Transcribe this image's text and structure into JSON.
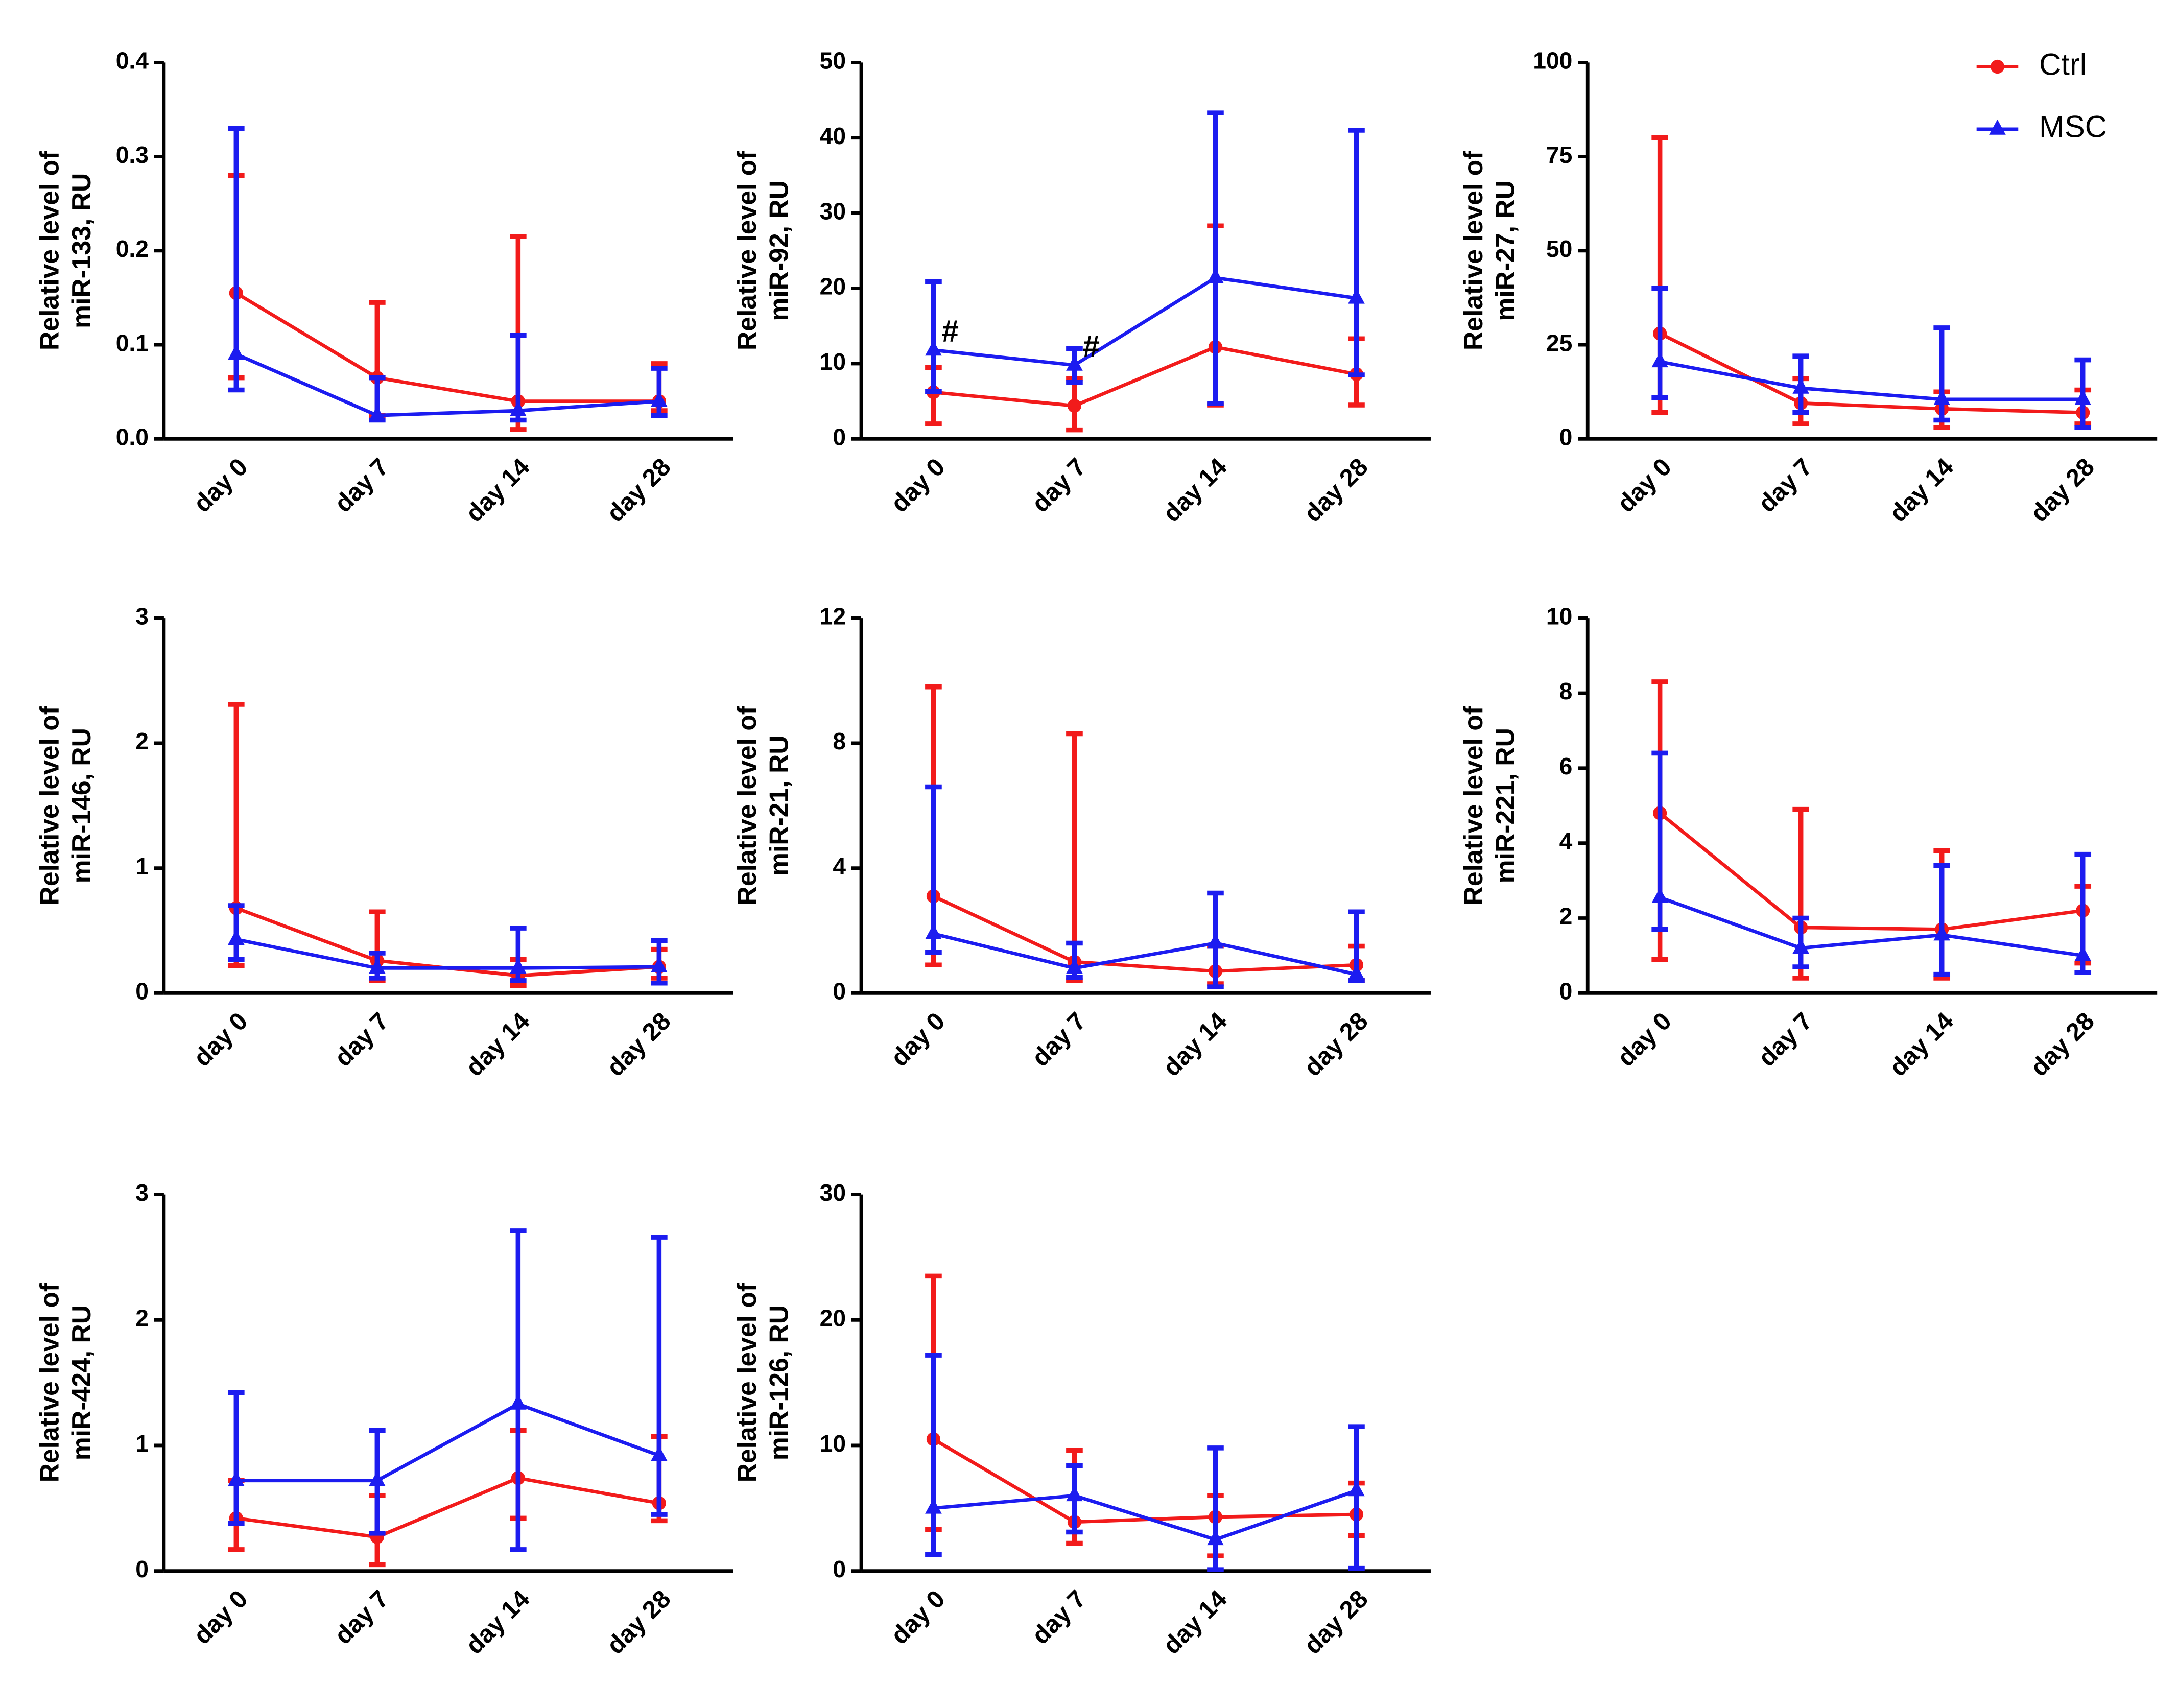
{
  "chart_data": [
    {
      "type": "line",
      "ylabel": [
        "Relative level of",
        "miR-133, RU"
      ],
      "categories": [
        "day 0",
        "day 7",
        "day 14",
        "day 28"
      ],
      "ylim": [
        0,
        0.4
      ],
      "yticks": [
        {
          "value": 0,
          "label": "0.0"
        },
        0.1,
        0.2,
        0.3,
        0.4
      ],
      "series": [
        {
          "name": "Ctrl",
          "color": "#f21b1b",
          "marker": "circle",
          "values": [
            0.155,
            0.065,
            0.04,
            0.04
          ],
          "lower": [
            0.065,
            0.025,
            0.01,
            0.03
          ],
          "upper": [
            0.28,
            0.145,
            0.215,
            0.08
          ]
        },
        {
          "name": "MSC",
          "color": "#1c1cf0",
          "marker": "triangle",
          "values": [
            0.09,
            0.025,
            0.03,
            0.04
          ],
          "lower": [
            0.052,
            0.02,
            0.02,
            0.025
          ],
          "upper": [
            0.33,
            0.065,
            0.11,
            0.075
          ]
        }
      ]
    },
    {
      "type": "line",
      "ylabel": [
        "Relative level of",
        "miR-92, RU"
      ],
      "categories": [
        "day 0",
        "day 7",
        "day 14",
        "day 28"
      ],
      "ylim": [
        0,
        50
      ],
      "yticks": [
        0,
        10,
        20,
        30,
        40,
        50
      ],
      "annotations": [
        "#",
        "#"
      ],
      "series": [
        {
          "name": "Ctrl",
          "color": "#f21b1b",
          "marker": "circle",
          "values": [
            6.2,
            4.4,
            12.2,
            8.6
          ],
          "lower": [
            2,
            1.2,
            4.5,
            4.5
          ],
          "upper": [
            9.5,
            8,
            28.3,
            13.3
          ]
        },
        {
          "name": "MSC",
          "color": "#1c1cf0",
          "marker": "triangle",
          "values": [
            11.8,
            9.8,
            21.4,
            18.7
          ],
          "lower": [
            6.3,
            7.5,
            4.7,
            8.5
          ],
          "upper": [
            20.9,
            12,
            43.3,
            41
          ]
        }
      ]
    },
    {
      "type": "line",
      "ylabel": [
        "Relative level of",
        "miR-27, RU"
      ],
      "categories": [
        "day 0",
        "day 7",
        "day 14",
        "day 28"
      ],
      "ylim": [
        0,
        100
      ],
      "yticks": [
        0,
        25,
        50,
        75,
        100
      ],
      "legend": "upper right",
      "series": [
        {
          "name": "Ctrl",
          "color": "#f21b1b",
          "marker": "circle",
          "values": [
            28,
            9.5,
            8,
            7
          ],
          "lower": [
            7,
            4,
            3,
            4
          ],
          "upper": [
            80,
            16,
            12.5,
            13
          ]
        },
        {
          "name": "MSC",
          "color": "#1c1cf0",
          "marker": "triangle",
          "values": [
            20.5,
            13.5,
            10.5,
            10.5
          ],
          "lower": [
            11,
            7,
            5,
            3
          ],
          "upper": [
            40,
            22,
            29.5,
            21
          ]
        }
      ]
    },
    {
      "type": "line",
      "ylabel": [
        "Relative level of",
        "miR-146, RU"
      ],
      "categories": [
        "day 0",
        "day 7",
        "day 14",
        "day 28"
      ],
      "ylim": [
        0,
        3
      ],
      "yticks": [
        0,
        1,
        2,
        3
      ],
      "series": [
        {
          "name": "Ctrl",
          "color": "#f21b1b",
          "marker": "circle",
          "values": [
            0.68,
            0.26,
            0.14,
            0.21
          ],
          "lower": [
            0.22,
            0.1,
            0.06,
            0.12
          ],
          "upper": [
            2.31,
            0.65,
            0.27,
            0.35
          ]
        },
        {
          "name": "MSC",
          "color": "#1c1cf0",
          "marker": "triangle",
          "values": [
            0.43,
            0.2,
            0.2,
            0.21
          ],
          "lower": [
            0.27,
            0.12,
            0.1,
            0.08
          ],
          "upper": [
            0.7,
            0.32,
            0.52,
            0.42
          ]
        }
      ]
    },
    {
      "type": "line",
      "ylabel": [
        "Relative level of",
        "miR-21, RU"
      ],
      "categories": [
        "day 0",
        "day 7",
        "day 14",
        "day 28"
      ],
      "ylim": [
        0,
        12
      ],
      "yticks": [
        0,
        4,
        8,
        12
      ],
      "series": [
        {
          "name": "Ctrl",
          "color": "#f21b1b",
          "marker": "circle",
          "values": [
            3.1,
            1,
            0.7,
            0.9
          ],
          "lower": [
            0.9,
            0.4,
            0.3,
            0.4
          ],
          "upper": [
            9.8,
            8.3,
            1.5,
            1.5
          ]
        },
        {
          "name": "MSC",
          "color": "#1c1cf0",
          "marker": "triangle",
          "values": [
            1.9,
            0.8,
            1.6,
            0.6
          ],
          "lower": [
            1.3,
            0.5,
            0.2,
            0.4
          ],
          "upper": [
            6.6,
            1.6,
            3.2,
            2.6
          ]
        }
      ]
    },
    {
      "type": "line",
      "ylabel": [
        "Relative level of",
        "miR-221, RU"
      ],
      "categories": [
        "day 0",
        "day 7",
        "day 14",
        "day 28"
      ],
      "ylim": [
        0,
        10
      ],
      "yticks": [
        0,
        2,
        4,
        6,
        8,
        10
      ],
      "series": [
        {
          "name": "Ctrl",
          "color": "#f21b1b",
          "marker": "circle",
          "values": [
            4.8,
            1.75,
            1.7,
            2.2
          ],
          "lower": [
            0.9,
            0.4,
            0.4,
            0.8
          ],
          "upper": [
            8.3,
            4.9,
            3.8,
            2.85
          ]
        },
        {
          "name": "MSC",
          "color": "#1c1cf0",
          "marker": "triangle",
          "values": [
            2.55,
            1.2,
            1.55,
            1
          ],
          "lower": [
            1.7,
            0.7,
            0.5,
            0.55
          ],
          "upper": [
            6.4,
            2,
            3.4,
            3.7
          ]
        }
      ]
    },
    {
      "type": "line",
      "ylabel": [
        "Relative level of",
        "miR-424, RU"
      ],
      "categories": [
        "day 0",
        "day 7",
        "day 14",
        "day 28"
      ],
      "ylim": [
        0,
        3
      ],
      "yticks": [
        0,
        1,
        2,
        3
      ],
      "series": [
        {
          "name": "Ctrl",
          "color": "#f21b1b",
          "marker": "circle",
          "values": [
            0.42,
            0.27,
            0.74,
            0.54
          ],
          "lower": [
            0.17,
            0.05,
            0.42,
            0.4
          ],
          "upper": [
            0.72,
            0.6,
            1.12,
            1.07
          ]
        },
        {
          "name": "MSC",
          "color": "#1c1cf0",
          "marker": "triangle",
          "values": [
            0.72,
            0.72,
            1.33,
            0.92
          ],
          "lower": [
            0.38,
            0.3,
            0.17,
            0.45
          ],
          "upper": [
            1.42,
            1.12,
            2.71,
            2.66
          ]
        }
      ]
    },
    {
      "type": "line",
      "ylabel": [
        "Relative level of",
        "miR-126, RU"
      ],
      "categories": [
        "day 0",
        "day 7",
        "day 14",
        "day 28"
      ],
      "ylim": [
        0,
        30
      ],
      "yticks": [
        0,
        10,
        20,
        30
      ],
      "series": [
        {
          "name": "Ctrl",
          "color": "#f21b1b",
          "marker": "circle",
          "values": [
            10.5,
            3.9,
            4.3,
            4.5
          ],
          "lower": [
            3.3,
            2.2,
            1.2,
            2.8
          ],
          "upper": [
            23.5,
            9.6,
            6,
            7
          ]
        },
        {
          "name": "MSC",
          "color": "#1c1cf0",
          "marker": "triangle",
          "values": [
            5,
            6,
            2.5,
            6.4
          ],
          "lower": [
            1.3,
            3.1,
            0.1,
            0.2
          ],
          "upper": [
            17.2,
            8.4,
            9.8,
            11.5
          ]
        }
      ]
    }
  ]
}
